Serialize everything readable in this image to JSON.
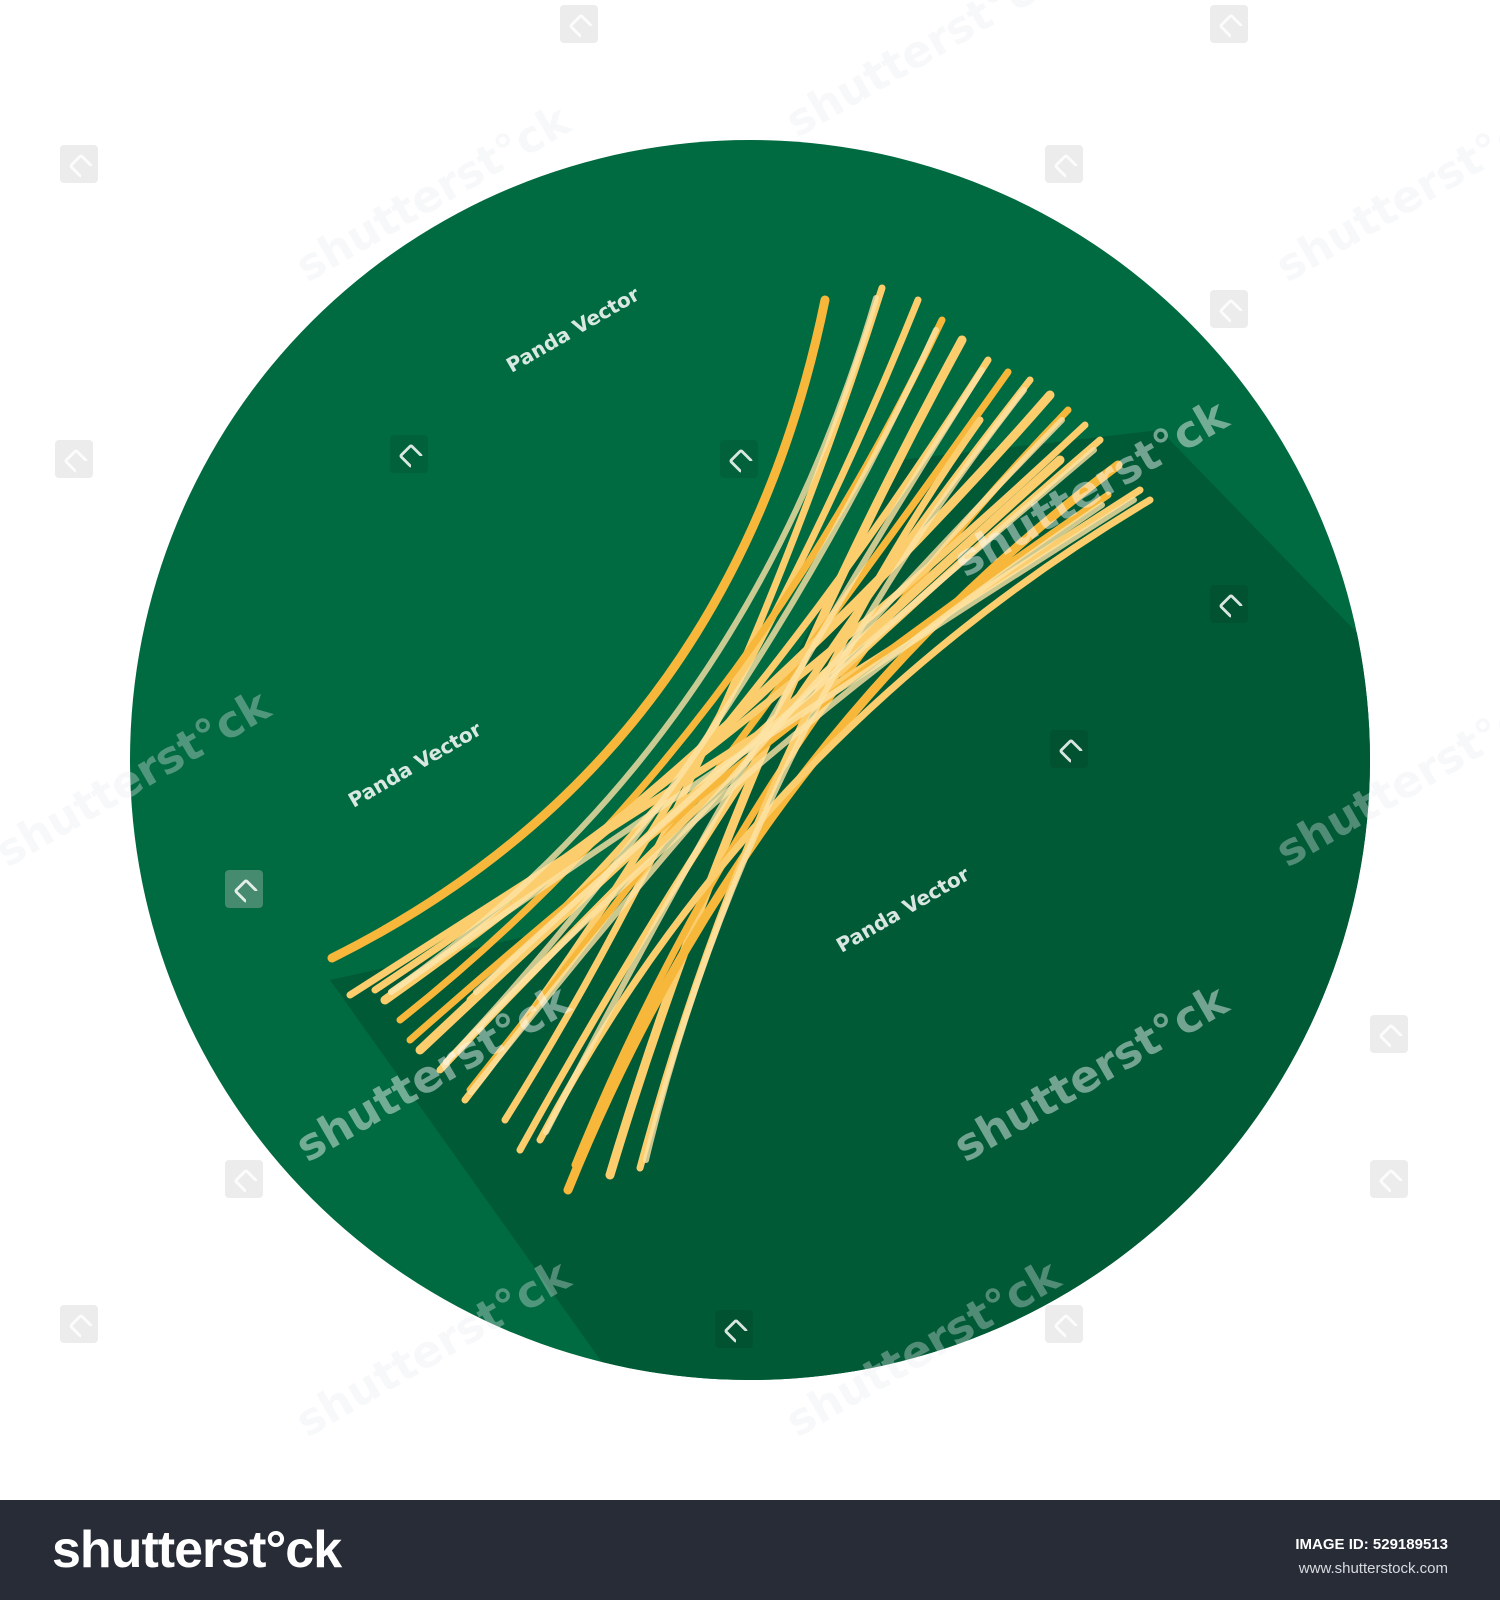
{
  "illustration": {
    "subject": "spaghetti-bundle",
    "circle_color": "#006a40",
    "shadow_color": "#005a36",
    "pasta_colors": [
      "#f7b73b",
      "#fccd6c",
      "#fde3a6"
    ]
  },
  "watermarks": {
    "panda_text": "Panda Vector",
    "shutter_text": "shutterst°ck"
  },
  "footer": {
    "logo_text": "shutterst°ck",
    "image_id_label": "IMAGE ID:",
    "image_id_value": "529189513",
    "site_url": "www.shutterstock.com",
    "background_color": "#282c37"
  }
}
